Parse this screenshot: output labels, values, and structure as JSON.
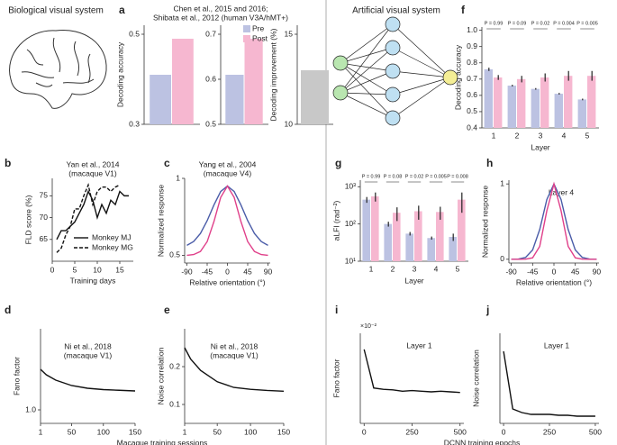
{
  "sections": [
    "Biological visual system",
    "Artificial visual system"
  ],
  "chart_data": [
    {
      "type": "bar",
      "panel": "a",
      "title": "Chen et al., 2015 and 2016;",
      "subtitle": "Shibata et al., 2012 (human V3A/hMT+)",
      "y_label": "Decoding accuracy",
      "categories": [
        null
      ],
      "series": [
        {
          "color": "#bcc2e2",
          "values": [
            0.41
          ]
        },
        {
          "color": "#f6b7d0",
          "values": [
            0.49
          ]
        }
      ],
      "ylim": [
        0.3,
        0.52
      ],
      "yticks": [
        0.3,
        0.5
      ]
    },
    {
      "type": "bar",
      "categories": [
        null
      ],
      "series": [
        {
          "name": "Pre",
          "color": "#bcc2e2",
          "values": [
            0.61
          ]
        },
        {
          "name": "Post",
          "color": "#f6b7d0",
          "values": [
            0.69
          ]
        }
      ],
      "ylim": [
        0.5,
        0.72
      ],
      "yticks": [
        0.5,
        0.6,
        0.7
      ],
      "legend": "top-right"
    },
    {
      "type": "bar",
      "y_label": "Decoding improvement (%)",
      "categories": [
        null
      ],
      "series": [
        {
          "color": "#c8c8c8",
          "values": [
            13
          ]
        }
      ],
      "ylim": [
        10,
        15.5
      ],
      "yticks": [
        10,
        15
      ]
    },
    {
      "type": "line",
      "panel": "b",
      "title": "Yan et al., 2014",
      "subtitle": "(macaque V1)",
      "x_label": "Training days",
      "y_label": "FLD score (%)",
      "x": [
        1,
        2,
        3,
        4,
        5,
        6,
        7,
        8,
        9,
        10,
        11,
        12,
        13,
        14,
        15,
        16,
        17
      ],
      "series": [
        {
          "name": "Monkey MJ",
          "color": "#111111",
          "dash": false,
          "values": [
            65,
            67,
            67,
            68,
            69,
            71,
            73,
            76,
            74,
            70,
            73,
            71,
            74,
            73,
            76,
            75,
            75
          ]
        },
        {
          "name": "Monkey MG",
          "color": "#111111",
          "dash": true,
          "values": [
            62,
            63,
            66,
            68,
            72,
            72,
            75,
            77.5,
            73,
            76,
            77,
            77,
            76,
            77,
            77.5,
            null,
            null
          ]
        }
      ],
      "xlim": [
        0,
        18
      ],
      "xticks": [
        0,
        5,
        10,
        15
      ],
      "ylim": [
        60,
        79
      ],
      "yticks": [
        65,
        70,
        75
      ],
      "legend": "bottom-right"
    },
    {
      "type": "line",
      "panel": "c",
      "title": "Yang et al., 2004",
      "subtitle": "(macaque V4)",
      "x_label": "Relative orientation (°)",
      "y_label": "Normalized response",
      "x": [
        -90,
        -75,
        -60,
        -45,
        -30,
        -15,
        0,
        15,
        30,
        45,
        60,
        75,
        90
      ],
      "series": [
        {
          "color": "#4a5ca8",
          "values": [
            0.565,
            0.59,
            0.642,
            0.725,
            0.827,
            0.915,
            0.95,
            0.915,
            0.827,
            0.725,
            0.642,
            0.59,
            0.565
          ]
        },
        {
          "color": "#e0408a",
          "values": [
            0.5,
            0.505,
            0.525,
            0.589,
            0.719,
            0.876,
            0.95,
            0.876,
            0.719,
            0.589,
            0.525,
            0.505,
            0.5
          ]
        }
      ],
      "xlim": [
        -95,
        95
      ],
      "xticks": [
        -90,
        -45,
        0,
        45,
        90
      ],
      "ylim": [
        0.45,
        1
      ],
      "yticks": [
        0.5,
        1
      ]
    },
    {
      "type": "line",
      "panel": "d",
      "title": "Ni et al., 2018",
      "subtitle": "(macaque V1)",
      "x_label": "Macaque training sessions",
      "y_label": "Fano factor",
      "x": [
        1,
        10,
        25,
        50,
        75,
        100,
        125,
        150
      ],
      "series": [
        {
          "color": "#111111",
          "values": [
            1.3,
            1.26,
            1.22,
            1.18,
            1.16,
            1.15,
            1.145,
            1.14
          ]
        }
      ],
      "xlim": [
        1,
        150
      ],
      "xticks": [
        1,
        50,
        100,
        150
      ],
      "ylim": [
        0.9,
        1.6
      ],
      "yticks": [
        {
          "value": 1,
          "label": "1.0"
        }
      ]
    },
    {
      "type": "line",
      "panel": "e",
      "title": "Ni et al., 2018",
      "subtitle": "(macaque V1)",
      "y_label": "Noise correlation",
      "x": [
        1,
        10,
        25,
        50,
        75,
        100,
        125,
        150
      ],
      "series": [
        {
          "color": "#111111",
          "values": [
            0.25,
            0.22,
            0.19,
            0.16,
            0.145,
            0.14,
            0.137,
            0.135
          ]
        }
      ],
      "xlim": [
        1,
        150
      ],
      "xticks": [
        1,
        50,
        100,
        150
      ],
      "ylim": [
        0.05,
        0.3
      ],
      "yticks": [
        0.1,
        0.2
      ]
    },
    {
      "type": "bar",
      "panel": "f",
      "x_label": "Layer",
      "y_label": "Decoding accuracy",
      "categories": [
        "1",
        "2",
        "3",
        "4",
        "5"
      ],
      "series": [
        {
          "color": "#bcc2e2",
          "values": [
            0.76,
            0.66,
            0.64,
            0.61,
            0.575
          ],
          "errors": [
            0.01,
            0.005,
            0.005,
            0.005,
            0.005
          ]
        },
        {
          "color": "#f6b7d0",
          "values": [
            0.71,
            0.7,
            0.71,
            0.72,
            0.72
          ],
          "errors": [
            0.015,
            0.02,
            0.025,
            0.03,
            0.03
          ]
        }
      ],
      "annotations": [
        "P = 0.99",
        "P = 0.09",
        "P = 0.02",
        "P = 0.004",
        "P = 0.005"
      ],
      "ylim": [
        0.4,
        1.02
      ],
      "yticks": [
        0.4,
        0.5,
        0.6,
        0.7,
        0.8,
        0.9,
        {
          "value": 1,
          "label": "1.0"
        }
      ]
    },
    {
      "type": "bar",
      "panel": "g",
      "log": true,
      "x_label": "Layer",
      "y_label": "aLFI (rad⁻²)",
      "categories": [
        "1",
        "2",
        "3",
        "4",
        "5"
      ],
      "series": [
        {
          "color": "#bcc2e2",
          "values": [
            450,
            100,
            55,
            42,
            45
          ],
          "errors": [
            80,
            15,
            6,
            4,
            10
          ]
        },
        {
          "color": "#f6b7d0",
          "values": [
            550,
            200,
            220,
            210,
            450
          ],
          "errors": [
            150,
            80,
            90,
            80,
            250
          ]
        }
      ],
      "annotations": [
        "P = 0.99",
        "P = 0.08",
        "P = 0.02",
        "P = 0.005",
        "P = 0.008"
      ],
      "ylim": [
        10,
        1500
      ],
      "yticks": [
        {
          "value": 10,
          "label": "10¹"
        },
        {
          "value": 100,
          "label": "10²"
        },
        {
          "value": 1000,
          "label": "10³"
        }
      ]
    },
    {
      "type": "line",
      "panel": "h",
      "annotation": "Layer 4",
      "x_label": "Relative orientation (°)",
      "y_label": "Normalized response",
      "x": [
        -90,
        -75,
        -60,
        -45,
        -30,
        -15,
        0,
        15,
        30,
        45,
        60,
        75,
        90
      ],
      "series": [
        {
          "color": "#4a5ca8",
          "values": [
            0,
            0.003,
            0.024,
            0.123,
            0.395,
            0.793,
            1,
            0.793,
            0.395,
            0.123,
            0.024,
            0.003,
            0
          ]
        },
        {
          "color": "#e0408a",
          "values": [
            0,
            0,
            0.001,
            0.019,
            0.172,
            0.644,
            1,
            0.644,
            0.172,
            0.019,
            0.001,
            0,
            0
          ]
        }
      ],
      "xlim": [
        -95,
        95
      ],
      "xticks": [
        -90,
        -45,
        0,
        45,
        90
      ],
      "ylim": [
        -0.05,
        1.05
      ],
      "yticks": [
        0,
        1
      ]
    },
    {
      "type": "line",
      "panel": "i",
      "annotation": "Layer 1",
      "y_multiplier": "×10⁻²",
      "x_label": "DCNN training epochs",
      "y_label": "Fano factor",
      "x": [
        0,
        50,
        100,
        150,
        200,
        250,
        300,
        350,
        400,
        450,
        500
      ],
      "series": [
        {
          "color": "#111111",
          "values": [
            1.15,
            0.55,
            0.53,
            0.52,
            0.5,
            0.51,
            0.5,
            0.49,
            0.5,
            0.49,
            0.48
          ]
        }
      ],
      "xlim": [
        -20,
        520
      ],
      "xticks": [
        0,
        250,
        500
      ],
      "ylim": [
        0,
        1.4
      ],
      "yticks": []
    },
    {
      "type": "line",
      "panel": "j",
      "annotation": "Layer 1",
      "y_label": "Noise correlation",
      "x": [
        0,
        50,
        100,
        150,
        200,
        250,
        300,
        350,
        400,
        450,
        500
      ],
      "series": [
        {
          "color": "#111111",
          "values": [
            0.4,
            0.08,
            0.06,
            0.05,
            0.05,
            0.05,
            0.045,
            0.045,
            0.04,
            0.04,
            0.04
          ]
        }
      ],
      "xlim": [
        -20,
        520
      ],
      "xticks": [
        0,
        250,
        500
      ],
      "ylim": [
        0,
        0.5
      ],
      "yticks": []
    }
  ]
}
